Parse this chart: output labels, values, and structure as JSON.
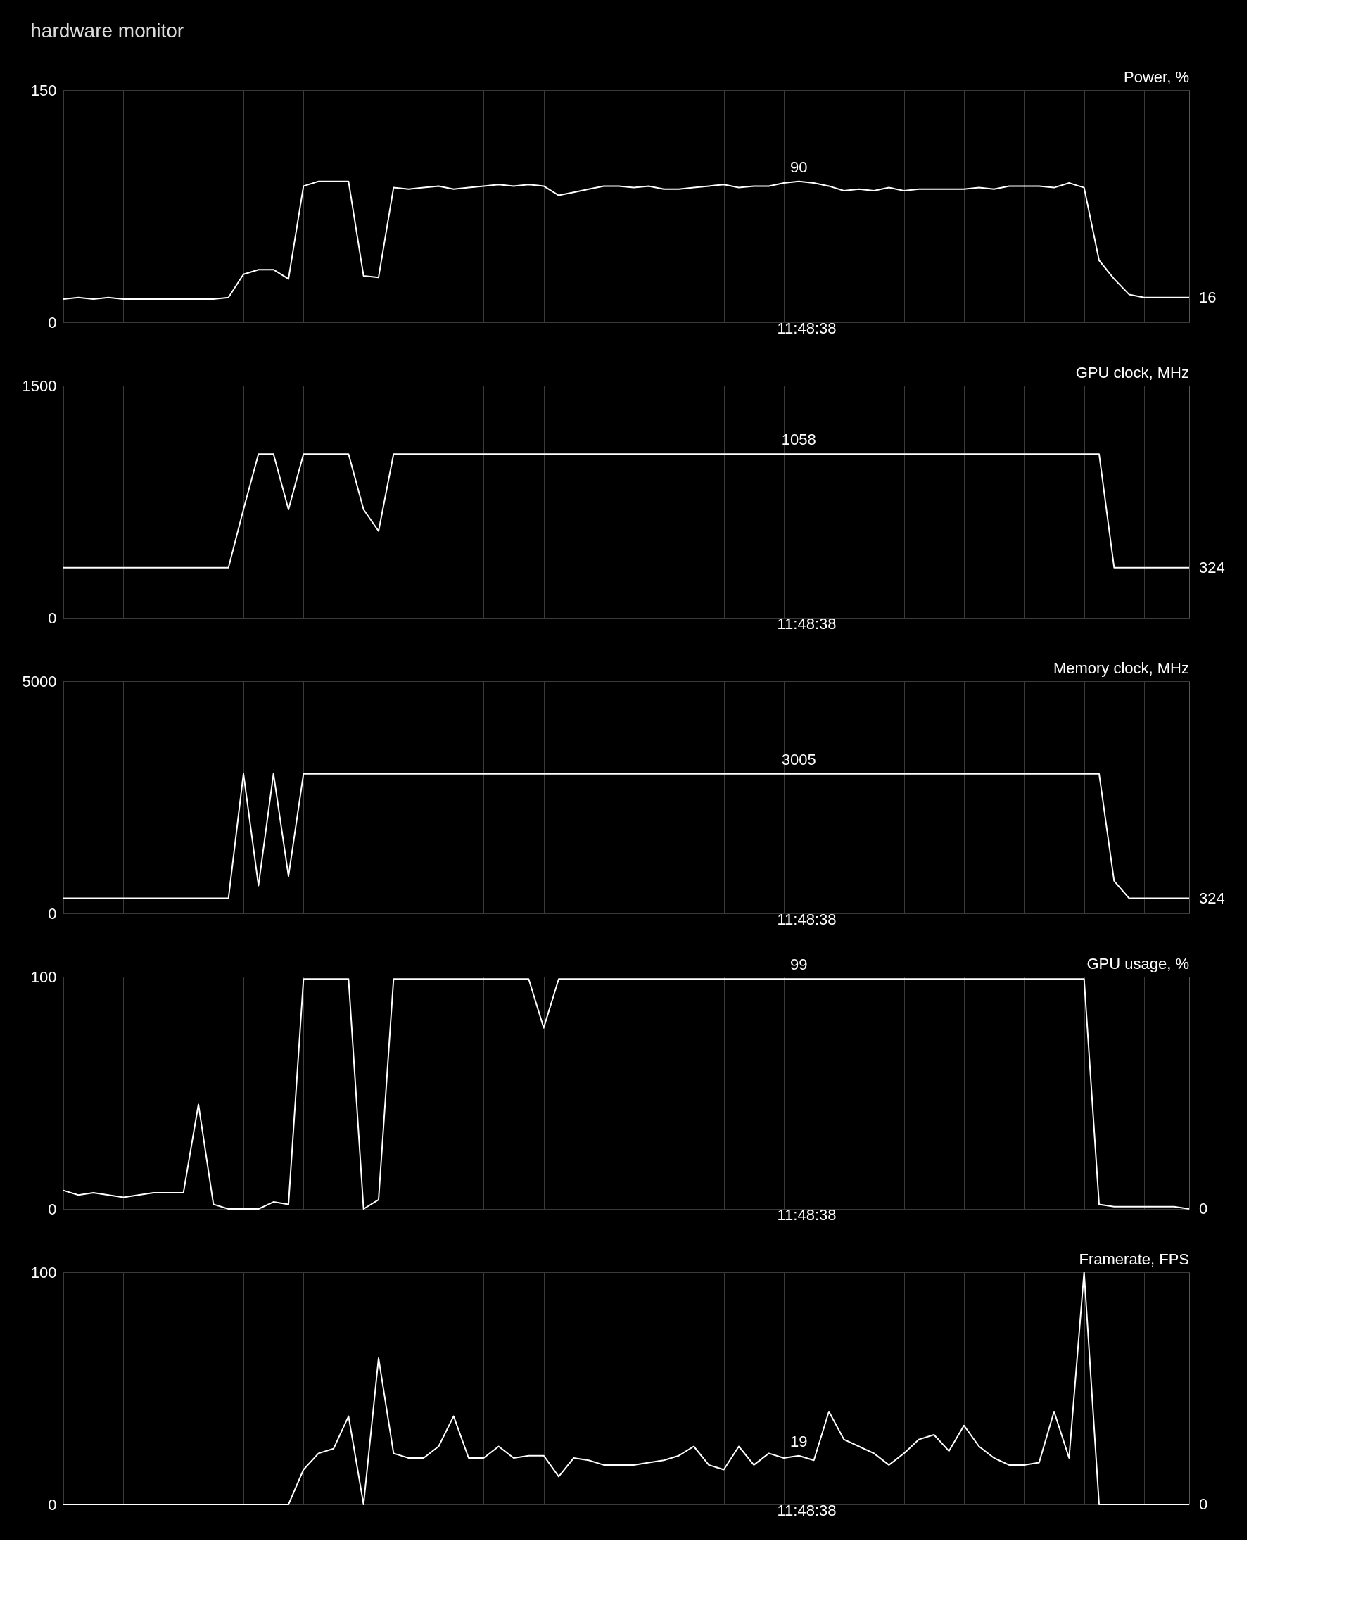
{
  "chart_data": [
    {
      "type": "line",
      "title": "hardware monitor",
      "ylabel": "Power, %",
      "xlabel": "11:48:38",
      "grid": true,
      "categories": [
        null,
        null,
        null,
        null,
        null,
        null,
        null,
        null,
        null,
        null,
        null,
        null,
        null,
        null,
        null,
        null,
        null,
        null,
        null,
        null,
        null,
        null,
        null,
        null,
        null,
        null,
        null,
        null,
        null,
        null,
        null,
        null,
        null,
        null,
        null,
        null,
        null,
        null,
        null,
        null,
        null,
        null,
        null,
        null,
        null,
        null,
        null,
        null,
        null,
        null,
        null,
        null,
        null,
        null,
        null,
        null,
        null,
        null,
        null,
        null,
        null,
        null,
        null,
        null,
        null,
        null,
        null,
        null,
        null,
        null,
        null,
        null,
        null,
        null,
        null,
        null
      ],
      "ylim": [
        0,
        150
      ],
      "yticks": [
        0,
        150
      ],
      "series": [
        {
          "color": "#ffffff",
          "values": [
            15,
            16,
            15,
            16,
            15,
            15,
            15,
            15,
            15,
            15,
            15,
            16,
            31,
            34,
            34,
            28,
            88,
            91,
            91,
            91,
            30,
            29,
            87,
            86,
            87,
            88,
            86,
            87,
            88,
            89,
            88,
            89,
            88,
            82,
            84,
            86,
            88,
            88,
            87,
            88,
            86,
            86,
            87,
            88,
            89,
            87,
            88,
            88,
            90,
            91,
            90,
            88,
            85,
            86,
            85,
            87,
            85,
            86,
            86,
            86,
            86,
            87,
            86,
            88,
            88,
            88,
            87,
            90,
            87,
            40,
            28,
            18,
            16,
            16,
            16,
            16
          ]
        }
      ],
      "annotations": [
        "90",
        "16"
      ]
    },
    {
      "type": "line",
      "ylabel": "GPU clock, MHz",
      "xlabel": "11:48:38",
      "grid": true,
      "categories": [
        null,
        null,
        null,
        null,
        null,
        null,
        null,
        null,
        null,
        null,
        null,
        null,
        null,
        null,
        null,
        null,
        null,
        null,
        null,
        null,
        null,
        null,
        null,
        null,
        null,
        null,
        null,
        null,
        null,
        null,
        null,
        null,
        null,
        null,
        null,
        null,
        null,
        null,
        null,
        null,
        null,
        null,
        null,
        null,
        null,
        null,
        null,
        null,
        null,
        null,
        null,
        null,
        null,
        null,
        null,
        null,
        null,
        null,
        null,
        null,
        null,
        null,
        null,
        null,
        null,
        null,
        null,
        null,
        null,
        null,
        null,
        null,
        null,
        null,
        null,
        null
      ],
      "ylim": [
        0,
        1500
      ],
      "yticks": [
        0,
        1500
      ],
      "series": [
        {
          "color": "#ffffff",
          "values": [
            324,
            324,
            324,
            324,
            324,
            324,
            324,
            324,
            324,
            324,
            324,
            324,
            700,
            1058,
            1058,
            700,
            1058,
            1058,
            1058,
            1058,
            700,
            560,
            1058,
            1058,
            1058,
            1058,
            1058,
            1058,
            1058,
            1058,
            1058,
            1058,
            1058,
            1058,
            1058,
            1058,
            1058,
            1058,
            1058,
            1058,
            1058,
            1058,
            1058,
            1058,
            1058,
            1058,
            1058,
            1058,
            1058,
            1058,
            1058,
            1058,
            1058,
            1058,
            1058,
            1058,
            1058,
            1058,
            1058,
            1058,
            1058,
            1058,
            1058,
            1058,
            1058,
            1058,
            1058,
            1058,
            1058,
            1058,
            324,
            324,
            324,
            324,
            324,
            324
          ]
        }
      ],
      "annotations": [
        "1058",
        "324"
      ]
    },
    {
      "type": "line",
      "ylabel": "Memory clock, MHz",
      "xlabel": "11:48:38",
      "grid": true,
      "categories": [
        null,
        null,
        null,
        null,
        null,
        null,
        null,
        null,
        null,
        null,
        null,
        null,
        null,
        null,
        null,
        null,
        null,
        null,
        null,
        null,
        null,
        null,
        null,
        null,
        null,
        null,
        null,
        null,
        null,
        null,
        null,
        null,
        null,
        null,
        null,
        null,
        null,
        null,
        null,
        null,
        null,
        null,
        null,
        null,
        null,
        null,
        null,
        null,
        null,
        null,
        null,
        null,
        null,
        null,
        null,
        null,
        null,
        null,
        null,
        null,
        null,
        null,
        null,
        null,
        null,
        null,
        null,
        null,
        null,
        null,
        null,
        null,
        null,
        null,
        null,
        null
      ],
      "ylim": [
        0,
        5000
      ],
      "yticks": [
        0,
        5000
      ],
      "series": [
        {
          "color": "#ffffff",
          "values": [
            324,
            324,
            324,
            324,
            324,
            324,
            324,
            324,
            324,
            324,
            324,
            324,
            3005,
            600,
            3005,
            800,
            3005,
            3005,
            3005,
            3005,
            3005,
            3005,
            3005,
            3005,
            3005,
            3005,
            3005,
            3005,
            3005,
            3005,
            3005,
            3005,
            3005,
            3005,
            3005,
            3005,
            3005,
            3005,
            3005,
            3005,
            3005,
            3005,
            3005,
            3005,
            3005,
            3005,
            3005,
            3005,
            3005,
            3005,
            3005,
            3005,
            3005,
            3005,
            3005,
            3005,
            3005,
            3005,
            3005,
            3005,
            3005,
            3005,
            3005,
            3005,
            3005,
            3005,
            3005,
            3005,
            3005,
            3005,
            700,
            324,
            324,
            324,
            324,
            324
          ]
        }
      ],
      "annotations": [
        "3005",
        "324"
      ]
    },
    {
      "type": "line",
      "ylabel": "GPU usage, %",
      "xlabel": "11:48:38",
      "grid": true,
      "categories": [
        null,
        null,
        null,
        null,
        null,
        null,
        null,
        null,
        null,
        null,
        null,
        null,
        null,
        null,
        null,
        null,
        null,
        null,
        null,
        null,
        null,
        null,
        null,
        null,
        null,
        null,
        null,
        null,
        null,
        null,
        null,
        null,
        null,
        null,
        null,
        null,
        null,
        null,
        null,
        null,
        null,
        null,
        null,
        null,
        null,
        null,
        null,
        null,
        null,
        null,
        null,
        null,
        null,
        null,
        null,
        null,
        null,
        null,
        null,
        null,
        null,
        null,
        null,
        null,
        null,
        null,
        null,
        null,
        null,
        null,
        null,
        null,
        null,
        null,
        null,
        null
      ],
      "ylim": [
        0,
        100
      ],
      "yticks": [
        0,
        100
      ],
      "series": [
        {
          "color": "#ffffff",
          "values": [
            8,
            6,
            7,
            6,
            5,
            6,
            7,
            7,
            7,
            45,
            2,
            0,
            0,
            0,
            3,
            2,
            99,
            99,
            99,
            99,
            0,
            4,
            99,
            99,
            99,
            99,
            99,
            99,
            99,
            99,
            99,
            99,
            78,
            99,
            99,
            99,
            99,
            99,
            99,
            99,
            99,
            99,
            99,
            99,
            99,
            99,
            99,
            99,
            99,
            99,
            99,
            99,
            99,
            99,
            99,
            99,
            99,
            99,
            99,
            99,
            99,
            99,
            99,
            99,
            99,
            99,
            99,
            99,
            99,
            2,
            1,
            1,
            1,
            1,
            1,
            0
          ]
        }
      ],
      "annotations": [
        "99",
        "0"
      ]
    },
    {
      "type": "line",
      "ylabel": "Framerate, FPS",
      "xlabel": "11:48:38",
      "grid": true,
      "categories": [
        null,
        null,
        null,
        null,
        null,
        null,
        null,
        null,
        null,
        null,
        null,
        null,
        null,
        null,
        null,
        null,
        null,
        null,
        null,
        null,
        null,
        null,
        null,
        null,
        null,
        null,
        null,
        null,
        null,
        null,
        null,
        null,
        null,
        null,
        null,
        null,
        null,
        null,
        null,
        null,
        null,
        null,
        null,
        null,
        null,
        null,
        null,
        null,
        null,
        null,
        null,
        null,
        null,
        null,
        null,
        null,
        null,
        null,
        null,
        null,
        null,
        null,
        null,
        null,
        null,
        null,
        null,
        null,
        null,
        null,
        null,
        null,
        null,
        null,
        null,
        null
      ],
      "ylim": [
        0,
        100
      ],
      "yticks": [
        0,
        100
      ],
      "series": [
        {
          "color": "#ffffff",
          "values": [
            0,
            0,
            0,
            0,
            0,
            0,
            0,
            0,
            0,
            0,
            0,
            0,
            0,
            0,
            0,
            0,
            15,
            22,
            24,
            38,
            0,
            63,
            22,
            20,
            20,
            25,
            38,
            20,
            20,
            25,
            20,
            21,
            21,
            12,
            20,
            19,
            17,
            17,
            17,
            18,
            19,
            21,
            25,
            17,
            15,
            25,
            17,
            22,
            20,
            21,
            19,
            40,
            28,
            25,
            22,
            17,
            22,
            28,
            30,
            23,
            34,
            25,
            20,
            17,
            17,
            18,
            40,
            20,
            100,
            0,
            0,
            0,
            0,
            0,
            0,
            0
          ]
        }
      ],
      "annotations": [
        "19",
        "0"
      ]
    }
  ]
}
